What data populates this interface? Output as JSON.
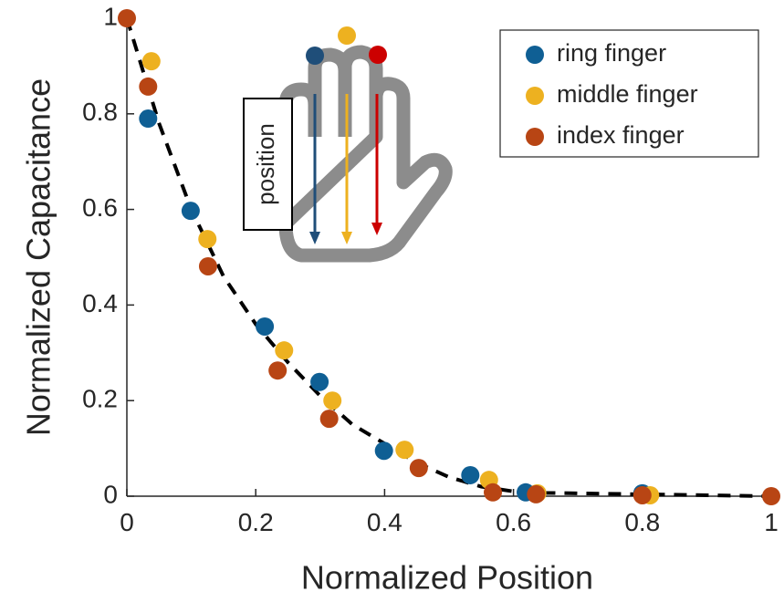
{
  "chart_data": {
    "type": "scatter",
    "xlabel": "Normalized Position",
    "ylabel": "Normalized Capacitance",
    "xlim": [
      0,
      1
    ],
    "ylim": [
      0,
      1
    ],
    "xticks": [
      0,
      0.2,
      0.4,
      0.6,
      0.8,
      1
    ],
    "yticks": [
      0,
      0.2,
      0.4,
      0.6,
      0.8,
      1
    ],
    "legend": "top-right",
    "inset_label": "position",
    "series": [
      {
        "name": "ring finger",
        "color": "#0f5f94",
        "x": [
          0.033,
          0.099,
          0.214,
          0.299,
          0.399,
          0.533,
          0.619,
          0.8
        ],
        "values": [
          0.79,
          0.597,
          0.355,
          0.239,
          0.095,
          0.044,
          0.008,
          0.006
        ]
      },
      {
        "name": "middle finger",
        "color": "#edb120",
        "x": [
          0.038,
          0.125,
          0.244,
          0.319,
          0.431,
          0.562,
          0.637,
          0.812
        ],
        "values": [
          0.91,
          0.538,
          0.305,
          0.2,
          0.097,
          0.034,
          0.006,
          0.002
        ]
      },
      {
        "name": "index finger",
        "color": "#b84514",
        "x": [
          0,
          0.033,
          0.126,
          0.234,
          0.314,
          0.453,
          0.568,
          0.635,
          0.8,
          1
        ],
        "values": [
          1,
          0.857,
          0.481,
          0.263,
          0.162,
          0.059,
          0.008,
          0.004,
          0.002,
          0
        ]
      }
    ],
    "fit_line": {
      "color": "#000000",
      "x": [
        0,
        0.05,
        0.1,
        0.15,
        0.2,
        0.25,
        0.3,
        0.35,
        0.4,
        0.45,
        0.5,
        0.55,
        0.6,
        0.65,
        0.8,
        1
      ],
      "y": [
        1,
        0.78,
        0.6,
        0.46,
        0.36,
        0.28,
        0.21,
        0.15,
        0.11,
        0.07,
        0.04,
        0.02,
        0.01,
        0.007,
        0.004,
        0
      ]
    }
  }
}
